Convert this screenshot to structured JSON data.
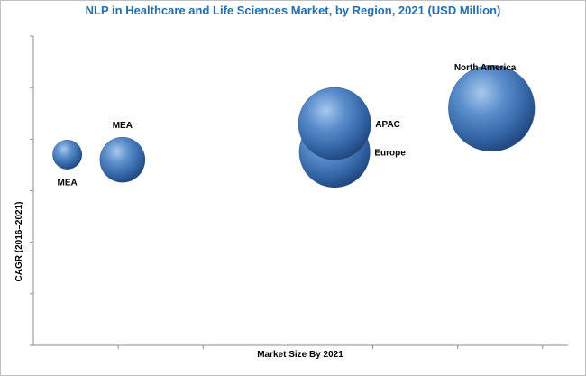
{
  "chart_data": {
    "type": "bubble",
    "title": "NLP in Healthcare and Life Sciences Market, by Region, 2021 (USD Million)",
    "xlabel": "Market Size By 2021",
    "ylabel": "CAGR (2016–2021)",
    "x_tick_labels_shown": false,
    "y_tick_labels_shown": false,
    "grid": false,
    "xlim": [
      0,
      6.3
    ],
    "ylim": [
      0,
      6
    ],
    "bubble_color": "#3a6fb0",
    "points": [
      {
        "label": "MEA",
        "x": 0.4,
        "y": 3.7,
        "size": 0.08,
        "label_position": "below"
      },
      {
        "label": "MEA",
        "x": 1.05,
        "y": 3.6,
        "size": 0.28,
        "label_position": "above"
      },
      {
        "label": "Europe",
        "x": 3.55,
        "y": 3.75,
        "size": 0.85,
        "label_position": "right"
      },
      {
        "label": "APAC",
        "x": 3.55,
        "y": 4.3,
        "size": 0.9,
        "label_position": "right"
      },
      {
        "label": "North America",
        "x": 5.4,
        "y": 4.6,
        "size": 1.35,
        "label_position": "above-left"
      }
    ]
  }
}
